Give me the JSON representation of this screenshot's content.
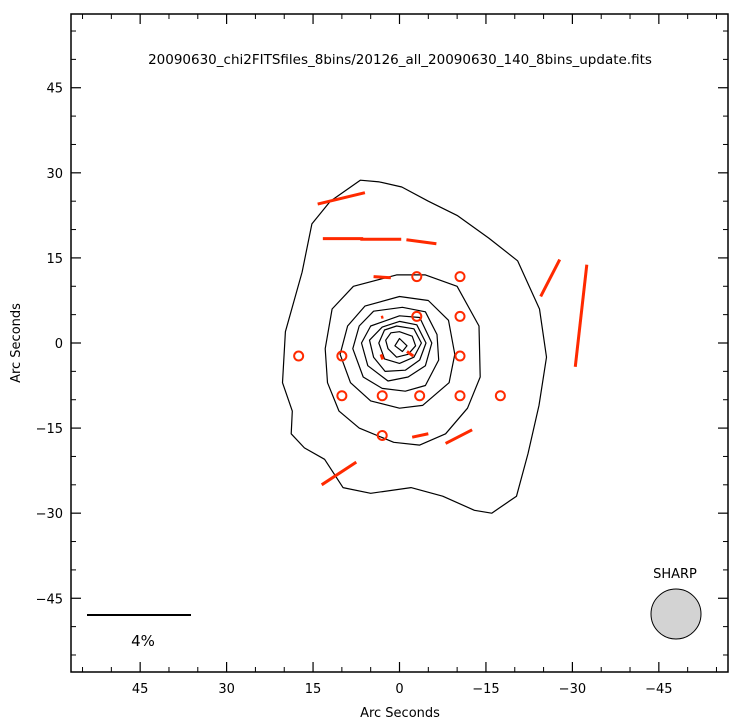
{
  "chart_data": {
    "type": "scatter",
    "title": "20090630_chi2FITSfiles_8bins/20126_all_20090630_140_8bins_update.fits",
    "xlabel": "Arc Seconds",
    "ylabel": "Arc Seconds",
    "xlim": [
      57,
      -57
    ],
    "ylim": [
      -58,
      58
    ],
    "x_ticks": [
      45,
      30,
      15,
      0,
      -15,
      -30,
      -45
    ],
    "x_tick_labels": [
      "45",
      "30",
      "15",
      "0",
      "−15",
      "−30",
      "−45"
    ],
    "y_ticks": [
      -45,
      -30,
      -15,
      0,
      15,
      30,
      45
    ],
    "y_tick_labels": [
      "−45",
      "−30",
      "−15",
      "0",
      "15",
      "30",
      "45"
    ],
    "scale_bar_label": "4%",
    "beam_label": "SHARP",
    "vector_color": "#ff2a00",
    "beam_fill": "#d3d3d3",
    "contours": [
      [
        [
          6.8,
          28.7
        ],
        [
          3.5,
          28.4
        ],
        [
          -0.4,
          27.5
        ],
        [
          -5,
          25
        ],
        [
          -10,
          22.5
        ],
        [
          -15.5,
          18.5
        ],
        [
          -20.5,
          14.5
        ],
        [
          -24.3,
          6
        ],
        [
          -25.5,
          -2.5
        ],
        [
          -24.2,
          -11
        ],
        [
          -22.3,
          -19.5
        ],
        [
          -20.3,
          -27
        ],
        [
          -16,
          -30
        ],
        [
          -13,
          -29.5
        ],
        [
          -7.5,
          -27
        ],
        [
          -2,
          -25.5
        ],
        [
          5,
          -26.5
        ],
        [
          9.8,
          -25.5
        ],
        [
          13,
          -20.5
        ],
        [
          16.5,
          -18.5
        ],
        [
          18.8,
          -16
        ],
        [
          18.6,
          -12
        ],
        [
          20.3,
          -7
        ],
        [
          19.8,
          2
        ],
        [
          16.9,
          12.5
        ],
        [
          15.2,
          21
        ],
        [
          12,
          25
        ],
        [
          6.8,
          28.7
        ]
      ],
      [
        [
          0.5,
          12
        ],
        [
          -4.5,
          12
        ],
        [
          -10,
          10
        ],
        [
          -13.8,
          3
        ],
        [
          -14,
          -6
        ],
        [
          -11.8,
          -11.5
        ],
        [
          -8,
          -16
        ],
        [
          -3.5,
          -18
        ],
        [
          1,
          -17.5
        ],
        [
          7,
          -15
        ],
        [
          10.5,
          -12
        ],
        [
          12.5,
          -7
        ],
        [
          12.9,
          -1
        ],
        [
          11.7,
          6
        ],
        [
          8,
          10
        ],
        [
          0.5,
          12
        ]
      ],
      [
        [
          0,
          8.2
        ],
        [
          -5,
          7.5
        ],
        [
          -8.5,
          4
        ],
        [
          -9.6,
          -2
        ],
        [
          -8.6,
          -7
        ],
        [
          -4,
          -11
        ],
        [
          0,
          -11.5
        ],
        [
          5,
          -10.2
        ],
        [
          8.5,
          -7
        ],
        [
          10.3,
          -2
        ],
        [
          9,
          3
        ],
        [
          6,
          6.5
        ],
        [
          0,
          8.2
        ]
      ],
      [
        [
          -0.5,
          6.3
        ],
        [
          -4.5,
          5.5
        ],
        [
          -6.5,
          1.5
        ],
        [
          -6.8,
          -3
        ],
        [
          -4.5,
          -7.5
        ],
        [
          -1,
          -8.5
        ],
        [
          3,
          -8
        ],
        [
          6.3,
          -6
        ],
        [
          8.1,
          -1
        ],
        [
          7,
          3
        ],
        [
          4.5,
          5.6
        ],
        [
          -0.5,
          6.3
        ]
      ],
      [
        [
          0,
          4.8
        ],
        [
          -3.5,
          4.5
        ],
        [
          -5.6,
          0
        ],
        [
          -4.5,
          -4
        ],
        [
          -1.5,
          -6
        ],
        [
          2,
          -6.7
        ],
        [
          5.5,
          -4
        ],
        [
          6.6,
          0
        ],
        [
          5,
          3
        ],
        [
          0,
          4.8
        ]
      ],
      [
        [
          0,
          3.8
        ],
        [
          -3,
          3.2
        ],
        [
          -4.6,
          0
        ],
        [
          -3.5,
          -3
        ],
        [
          -1,
          -4.8
        ],
        [
          2.5,
          -5
        ],
        [
          4.5,
          -2.5
        ],
        [
          5.2,
          0.5
        ],
        [
          3,
          2.8
        ],
        [
          0,
          3.8
        ]
      ],
      [
        [
          0.5,
          3
        ],
        [
          -2.5,
          2.5
        ],
        [
          -3.8,
          0
        ],
        [
          -2.5,
          -2.5
        ],
        [
          0,
          -3.6
        ],
        [
          2.6,
          -2.8
        ],
        [
          3.6,
          0
        ],
        [
          2.6,
          2.3
        ],
        [
          0.5,
          3
        ]
      ],
      [
        [
          0,
          2
        ],
        [
          -2.2,
          1.2
        ],
        [
          -2.8,
          -0.5
        ],
        [
          -1.5,
          -2
        ],
        [
          0.5,
          -2.5
        ],
        [
          2,
          -1
        ],
        [
          2.4,
          0.5
        ],
        [
          1.5,
          1.8
        ],
        [
          0,
          2
        ]
      ],
      [
        [
          0,
          0.8
        ],
        [
          -1.3,
          -0.5
        ],
        [
          -0.5,
          -1.5
        ],
        [
          0.8,
          -0.5
        ],
        [
          0,
          0.8
        ]
      ]
    ],
    "vectors": [
      [
        [
          14.2,
          24.5
        ],
        [
          6,
          26.5
        ]
      ],
      [
        [
          13.3,
          18.4
        ],
        [
          6.3,
          18.4
        ]
      ],
      [
        [
          6.8,
          18.3
        ],
        [
          -0.3,
          18.3
        ]
      ],
      [
        [
          -1.2,
          18.2
        ],
        [
          -6.4,
          17.5
        ]
      ],
      [
        [
          -24.5,
          8.2
        ],
        [
          -27.8,
          14.7
        ]
      ],
      [
        [
          -32.5,
          13.8
        ],
        [
          -30.5,
          -4.2
        ]
      ],
      [
        [
          4.5,
          11.7
        ],
        [
          1.5,
          11.5
        ]
      ],
      [
        [
          3.2,
          4.5
        ],
        [
          2.8,
          4.6
        ]
      ],
      [
        [
          -1.3,
          -1.5
        ],
        [
          -2.4,
          -2.3
        ]
      ],
      [
        [
          3.2,
          -2
        ],
        [
          2.9,
          -2.9
        ]
      ],
      [
        [
          -2.2,
          -16.6
        ],
        [
          -5,
          -16
        ]
      ],
      [
        [
          -8,
          -17.7
        ],
        [
          -12.6,
          -15.3
        ]
      ],
      [
        [
          13.5,
          -25
        ],
        [
          7.5,
          -21
        ]
      ]
    ],
    "points": [
      [
        -3,
        11.7
      ],
      [
        -10.5,
        11.7
      ],
      [
        -3,
        4.7
      ],
      [
        -10.5,
        4.7
      ],
      [
        17.5,
        -2.3
      ],
      [
        10,
        -2.3
      ],
      [
        -10.5,
        -2.3
      ],
      [
        10,
        -9.3
      ],
      [
        3,
        -9.3
      ],
      [
        -3.5,
        -9.3
      ],
      [
        -10.5,
        -9.3
      ],
      [
        -17.5,
        -9.3
      ],
      [
        3,
        -16.3
      ]
    ]
  }
}
